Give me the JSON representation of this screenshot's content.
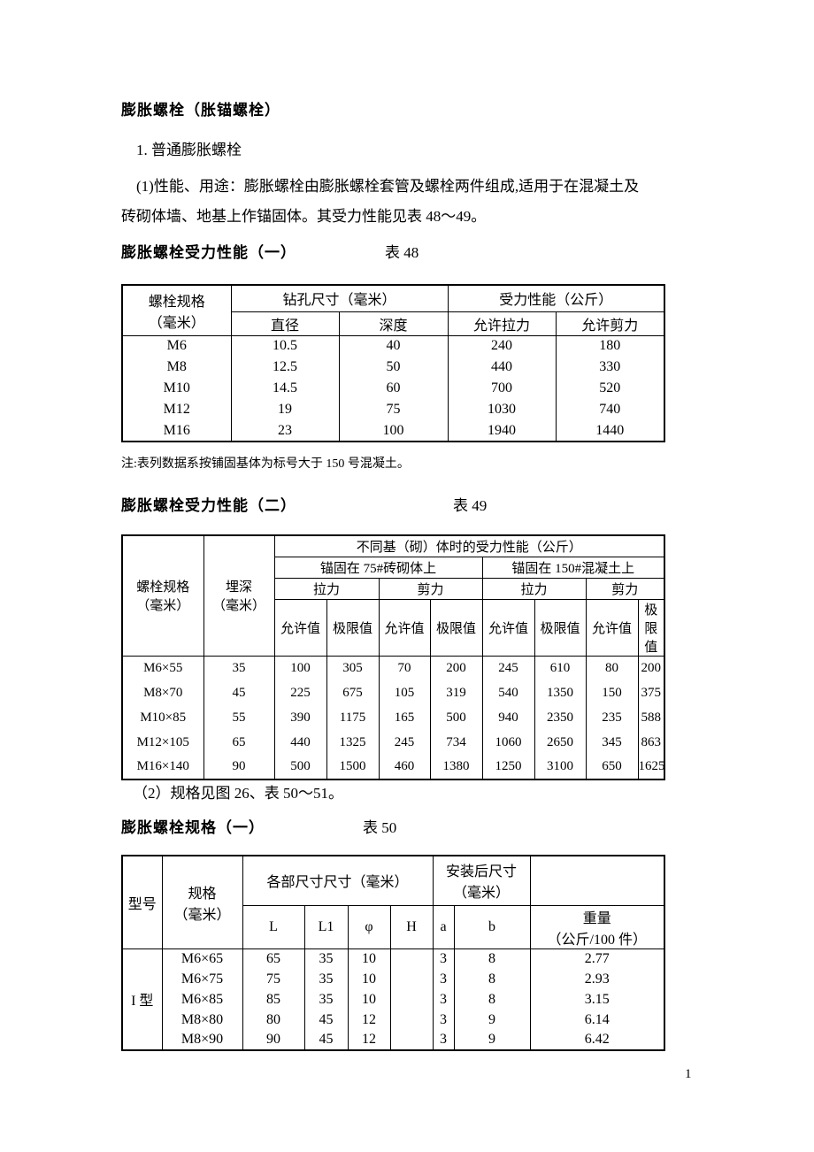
{
  "page_number": "1",
  "doc": {
    "title": "膨胀螺栓（胀锚螺栓）",
    "section1": "1. 普通膨胀螺栓",
    "para1_line1": "(1)性能、用途：膨胀螺栓由膨胀螺栓套管及螺栓两件组成,适用于在混凝土及",
    "para1_line2": "砖砌体墙、地基上作锚固体。其受力性能见表 48～49。",
    "note48": "注:表列数据系按铺固基体为标号大于 150 号混凝土。",
    "para2": "（2）规格见图 26、表 50～51。"
  },
  "table48": {
    "caption": "膨胀螺栓受力性能（一）",
    "label": "表 48",
    "header": {
      "spec": "螺栓规格\n（毫米）",
      "drill": "钻孔尺寸（毫米）",
      "force": "受力性能（公斤）",
      "diameter": "直径",
      "depth": "深度",
      "tension": "允许拉力",
      "shear": "允许剪力"
    },
    "rows": [
      [
        "M6",
        "10.5",
        "40",
        "240",
        "180"
      ],
      [
        "M8",
        "12.5",
        "50",
        "440",
        "330"
      ],
      [
        "M10",
        "14.5",
        "60",
        "700",
        "520"
      ],
      [
        "M12",
        "19",
        "75",
        "1030",
        "740"
      ],
      [
        "M16",
        "23",
        "100",
        "1940",
        "1440"
      ]
    ]
  },
  "table49": {
    "caption": "膨胀螺栓受力性能（二）",
    "label": "表 49",
    "header": {
      "spec": "螺栓规格\n（毫米）",
      "depth": "埋深\n（毫米）",
      "top": "不同基（砌）体时的受力性能（公斤）",
      "group1": "锚固在 75#砖砌体上",
      "group2": "锚固在 150#混凝土上",
      "tension": "拉力",
      "shear": "剪力",
      "allow": "允许值",
      "limit": "极限值",
      "limit_wrap": "极限\n值"
    },
    "rows": [
      [
        "M6×55",
        "35",
        "100",
        "305",
        "70",
        "200",
        "245",
        "610",
        "80",
        "200"
      ],
      [
        "M8×70",
        "45",
        "225",
        "675",
        "105",
        "319",
        "540",
        "1350",
        "150",
        "375"
      ],
      [
        "M10×85",
        "55",
        "390",
        "1175",
        "165",
        "500",
        "940",
        "2350",
        "235",
        "588"
      ],
      [
        "M12×105",
        "65",
        "440",
        "1325",
        "245",
        "734",
        "1060",
        "2650",
        "345",
        "863"
      ],
      [
        "M16×140",
        "90",
        "500",
        "1500",
        "460",
        "1380",
        "1250",
        "3100",
        "650",
        "1625"
      ]
    ]
  },
  "table50": {
    "caption": "膨胀螺栓规格（一）",
    "label": "表 50",
    "header": {
      "model": "型号",
      "spec": "规格\n（毫米）",
      "dims": "各部尺寸尺寸（毫米）",
      "installed": "安装后尺寸\n（毫米）",
      "L": "L",
      "L1": "L1",
      "phi": "φ",
      "H": "H",
      "a": "a",
      "b": "b",
      "weight": "重量\n（公斤/100 件）"
    },
    "type_label": "I 型",
    "rows": [
      [
        "M6×65",
        "65",
        "35",
        "10",
        "",
        "3",
        "8",
        "2.77"
      ],
      [
        "M6×75",
        "75",
        "35",
        "10",
        "",
        "3",
        "8",
        "2.93"
      ],
      [
        "M6×85",
        "85",
        "35",
        "10",
        "",
        "3",
        "8",
        "3.15"
      ],
      [
        "M8×80",
        "80",
        "45",
        "12",
        "",
        "3",
        "9",
        "6.14"
      ],
      [
        "M8×90",
        "90",
        "45",
        "12",
        "",
        "3",
        "9",
        "6.42"
      ]
    ]
  }
}
